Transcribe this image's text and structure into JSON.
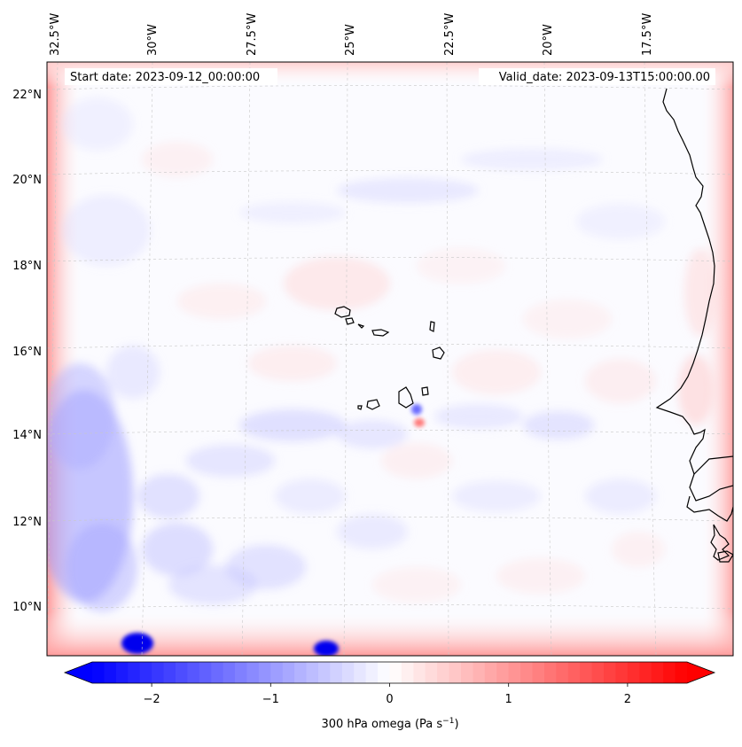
{
  "header": {
    "start_date": "Start date: 2023-09-12_00:00:00",
    "valid_date": "Valid_date: 2023-09-13T15:00:00.00"
  },
  "lon_labels": [
    "32.5°W",
    "30°W",
    "27.5°W",
    "25°W",
    "22.5°W",
    "20°W",
    "17.5°W"
  ],
  "lat_labels": [
    "22°N",
    "20°N",
    "18°N",
    "16°N",
    "14°N",
    "12°N",
    "10°N"
  ],
  "colorbar": {
    "ticks": [
      "−2",
      "−1",
      "0",
      "1",
      "2"
    ],
    "tick_values": [
      -2,
      -1,
      0,
      1,
      2
    ],
    "range": [
      -2.5,
      2.5
    ],
    "extend": "both",
    "label_main": "300 hPa omega (Pa s",
    "label_sup": "−1",
    "label_end": ")",
    "colormap": "bwr",
    "colors": {
      "low": "#0000ff",
      "mid": "#ffffff",
      "high": "#ff0000"
    }
  },
  "map": {
    "field": "300 hPa omega",
    "projection": "Lambert conformal",
    "lon_range": [
      "33°W",
      "15.5°W"
    ],
    "lat_range": [
      "9°N",
      "23°N"
    ],
    "gridlines": true,
    "coastlines": true
  }
}
